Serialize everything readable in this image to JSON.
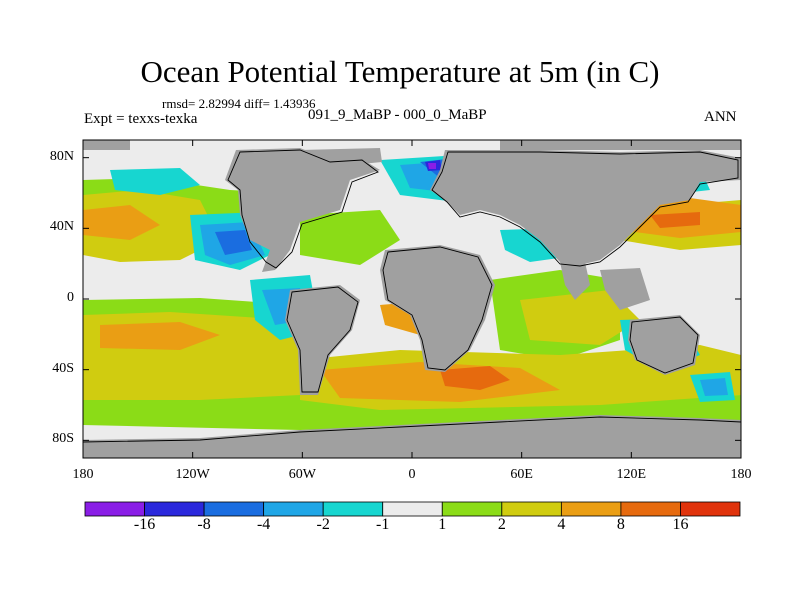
{
  "title": "Ocean Potential Temperature at 5m (in C)",
  "stats": "rmsd= 2.82994 diff= 1.43936",
  "left_label": "Expt = texxs-texka",
  "experiment": "091_9_MaBP - 000_0_MaBP",
  "season": "ANN",
  "y_ticks": [
    {
      "label": "80N",
      "lat": 80
    },
    {
      "label": "40N",
      "lat": 40
    },
    {
      "label": "0",
      "lat": 0
    },
    {
      "label": "40S",
      "lat": -40
    },
    {
      "label": "80S",
      "lat": -80
    }
  ],
  "x_ticks": [
    {
      "label": "180",
      "lon": -180
    },
    {
      "label": "120W",
      "lon": -120
    },
    {
      "label": "60W",
      "lon": -60
    },
    {
      "label": "0",
      "lon": 0
    },
    {
      "label": "60E",
      "lon": 60
    },
    {
      "label": "120E",
      "lon": 120
    },
    {
      "label": "180",
      "lon": 180
    }
  ],
  "colorbar": {
    "colors": [
      "#8a1ee6",
      "#2b28dc",
      "#1a6de0",
      "#1fa6e6",
      "#17d6d0",
      "#ececec",
      "#8bdc17",
      "#d0cc10",
      "#ea9e14",
      "#e66a0e",
      "#e0330c"
    ],
    "labels": [
      "-16",
      "-8",
      "-4",
      "-2",
      "-1",
      "1",
      "2",
      "4",
      "8",
      "16"
    ]
  },
  "colors": {
    "land": "#a0a0a0",
    "coast": "#000000"
  }
}
